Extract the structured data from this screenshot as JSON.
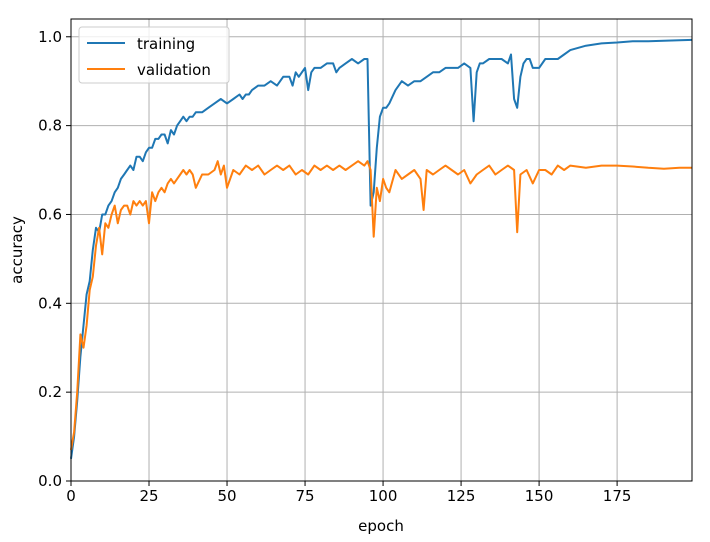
{
  "chart_data": {
    "type": "line",
    "title": "",
    "xlabel": "epoch",
    "ylabel": "accuracy",
    "xlim": [
      0,
      199
    ],
    "ylim": [
      0.0,
      1.04
    ],
    "xticks": [
      0,
      25,
      50,
      75,
      100,
      125,
      150,
      175
    ],
    "yticks": [
      0.0,
      0.2,
      0.4,
      0.6,
      0.8,
      1.0
    ],
    "xtick_labels": [
      "0",
      "25",
      "50",
      "75",
      "100",
      "125",
      "150",
      "175"
    ],
    "ytick_labels": [
      "0.0",
      "0.2",
      "0.4",
      "0.6",
      "0.8",
      "1.0"
    ],
    "grid": true,
    "legend_position": "top-left",
    "colors": {
      "training": "#1f77b4",
      "validation": "#ff7f0e",
      "grid": "#b0b0b0"
    },
    "series": [
      {
        "name": "training",
        "x": [
          0,
          1,
          2,
          3,
          4,
          5,
          6,
          7,
          8,
          9,
          10,
          11,
          12,
          13,
          14,
          15,
          16,
          17,
          18,
          19,
          20,
          21,
          22,
          23,
          24,
          25,
          26,
          27,
          28,
          29,
          30,
          31,
          32,
          33,
          34,
          35,
          36,
          37,
          38,
          39,
          40,
          42,
          44,
          46,
          48,
          50,
          52,
          54,
          55,
          56,
          57,
          58,
          60,
          62,
          64,
          66,
          68,
          70,
          71,
          72,
          73,
          74,
          75,
          76,
          77,
          78,
          80,
          82,
          84,
          85,
          86,
          88,
          90,
          92,
          94,
          95,
          96,
          97,
          98,
          99,
          100,
          101,
          102,
          104,
          106,
          108,
          110,
          112,
          114,
          116,
          118,
          120,
          122,
          124,
          126,
          128,
          129,
          130,
          131,
          132,
          134,
          136,
          138,
          140,
          141,
          142,
          143,
          144,
          145,
          146,
          147,
          148,
          150,
          152,
          154,
          156,
          158,
          160,
          165,
          170,
          175,
          180,
          185,
          190,
          195,
          199
        ],
        "y": [
          0.05,
          0.1,
          0.18,
          0.28,
          0.35,
          0.42,
          0.45,
          0.52,
          0.57,
          0.56,
          0.6,
          0.6,
          0.62,
          0.63,
          0.65,
          0.66,
          0.68,
          0.69,
          0.7,
          0.71,
          0.7,
          0.73,
          0.73,
          0.72,
          0.74,
          0.75,
          0.75,
          0.77,
          0.77,
          0.78,
          0.78,
          0.76,
          0.79,
          0.78,
          0.8,
          0.81,
          0.82,
          0.81,
          0.82,
          0.82,
          0.83,
          0.83,
          0.84,
          0.85,
          0.86,
          0.85,
          0.86,
          0.87,
          0.86,
          0.87,
          0.87,
          0.88,
          0.89,
          0.89,
          0.9,
          0.89,
          0.91,
          0.91,
          0.89,
          0.92,
          0.91,
          0.92,
          0.93,
          0.88,
          0.92,
          0.93,
          0.93,
          0.94,
          0.94,
          0.92,
          0.93,
          0.94,
          0.95,
          0.94,
          0.95,
          0.95,
          0.62,
          0.65,
          0.75,
          0.82,
          0.84,
          0.84,
          0.85,
          0.88,
          0.9,
          0.89,
          0.9,
          0.9,
          0.91,
          0.92,
          0.92,
          0.93,
          0.93,
          0.93,
          0.94,
          0.93,
          0.81,
          0.92,
          0.94,
          0.94,
          0.95,
          0.95,
          0.95,
          0.94,
          0.96,
          0.86,
          0.84,
          0.91,
          0.94,
          0.95,
          0.95,
          0.93,
          0.93,
          0.95,
          0.95,
          0.95,
          0.96,
          0.97,
          0.98,
          0.985,
          0.987,
          0.99,
          0.99,
          0.991,
          0.992,
          0.993
        ]
      },
      {
        "name": "validation",
        "x": [
          0,
          1,
          2,
          3,
          4,
          5,
          6,
          7,
          8,
          9,
          10,
          11,
          12,
          13,
          14,
          15,
          16,
          17,
          18,
          19,
          20,
          21,
          22,
          23,
          24,
          25,
          26,
          27,
          28,
          29,
          30,
          31,
          32,
          33,
          34,
          35,
          36,
          37,
          38,
          39,
          40,
          42,
          44,
          46,
          47,
          48,
          49,
          50,
          52,
          54,
          56,
          58,
          60,
          62,
          64,
          66,
          68,
          70,
          72,
          74,
          76,
          78,
          80,
          82,
          84,
          86,
          88,
          90,
          92,
          94,
          95,
          96,
          97,
          98,
          99,
          100,
          101,
          102,
          104,
          106,
          108,
          110,
          112,
          113,
          114,
          116,
          118,
          120,
          122,
          124,
          126,
          128,
          130,
          132,
          134,
          136,
          138,
          140,
          142,
          143,
          144,
          146,
          148,
          150,
          152,
          154,
          156,
          158,
          160,
          165,
          170,
          175,
          180,
          185,
          190,
          195,
          199
        ],
        "y": [
          0.07,
          0.11,
          0.2,
          0.33,
          0.3,
          0.35,
          0.43,
          0.46,
          0.53,
          0.57,
          0.51,
          0.58,
          0.57,
          0.6,
          0.62,
          0.58,
          0.61,
          0.62,
          0.62,
          0.6,
          0.63,
          0.62,
          0.63,
          0.62,
          0.63,
          0.58,
          0.65,
          0.63,
          0.65,
          0.66,
          0.65,
          0.67,
          0.68,
          0.67,
          0.68,
          0.69,
          0.7,
          0.69,
          0.7,
          0.69,
          0.66,
          0.69,
          0.69,
          0.7,
          0.72,
          0.69,
          0.71,
          0.66,
          0.7,
          0.69,
          0.71,
          0.7,
          0.71,
          0.69,
          0.7,
          0.71,
          0.7,
          0.71,
          0.69,
          0.7,
          0.69,
          0.71,
          0.7,
          0.71,
          0.7,
          0.71,
          0.7,
          0.71,
          0.72,
          0.71,
          0.72,
          0.7,
          0.55,
          0.66,
          0.63,
          0.68,
          0.66,
          0.65,
          0.7,
          0.68,
          0.69,
          0.7,
          0.68,
          0.61,
          0.7,
          0.69,
          0.7,
          0.71,
          0.7,
          0.69,
          0.7,
          0.67,
          0.69,
          0.7,
          0.71,
          0.69,
          0.7,
          0.71,
          0.7,
          0.56,
          0.69,
          0.7,
          0.67,
          0.7,
          0.7,
          0.69,
          0.71,
          0.7,
          0.71,
          0.705,
          0.71,
          0.71,
          0.708,
          0.705,
          0.703,
          0.705,
          0.705
        ]
      }
    ]
  }
}
